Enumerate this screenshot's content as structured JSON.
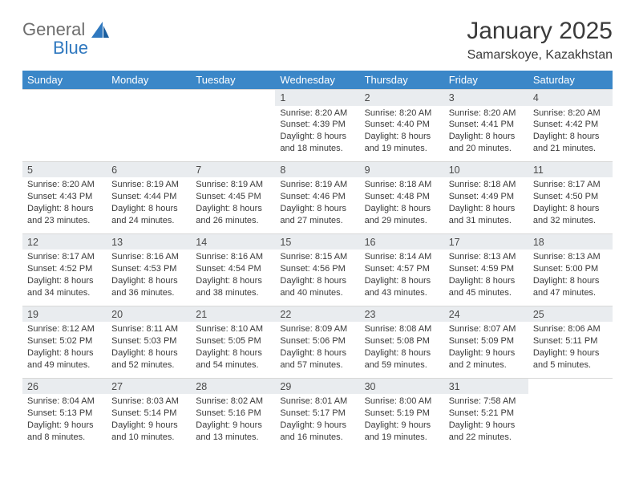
{
  "logo": {
    "word1": "General",
    "word2": "Blue"
  },
  "header": {
    "title": "January 2025",
    "location": "Samarskoye, Kazakhstan"
  },
  "colors": {
    "header_bg": "#3b87c8",
    "header_text": "#ffffff",
    "daynum_bg": "#e9ecef",
    "text": "#3a3a3a",
    "logo_grey": "#6d6d6d",
    "logo_blue": "#2f78bf"
  },
  "weekdays": [
    "Sunday",
    "Monday",
    "Tuesday",
    "Wednesday",
    "Thursday",
    "Friday",
    "Saturday"
  ],
  "weeks": [
    [
      {
        "day": "",
        "lines": [
          "",
          "",
          "",
          ""
        ]
      },
      {
        "day": "",
        "lines": [
          "",
          "",
          "",
          ""
        ]
      },
      {
        "day": "",
        "lines": [
          "",
          "",
          "",
          ""
        ]
      },
      {
        "day": "1",
        "lines": [
          "Sunrise: 8:20 AM",
          "Sunset: 4:39 PM",
          "Daylight: 8 hours",
          "and 18 minutes."
        ]
      },
      {
        "day": "2",
        "lines": [
          "Sunrise: 8:20 AM",
          "Sunset: 4:40 PM",
          "Daylight: 8 hours",
          "and 19 minutes."
        ]
      },
      {
        "day": "3",
        "lines": [
          "Sunrise: 8:20 AM",
          "Sunset: 4:41 PM",
          "Daylight: 8 hours",
          "and 20 minutes."
        ]
      },
      {
        "day": "4",
        "lines": [
          "Sunrise: 8:20 AM",
          "Sunset: 4:42 PM",
          "Daylight: 8 hours",
          "and 21 minutes."
        ]
      }
    ],
    [
      {
        "day": "5",
        "lines": [
          "Sunrise: 8:20 AM",
          "Sunset: 4:43 PM",
          "Daylight: 8 hours",
          "and 23 minutes."
        ]
      },
      {
        "day": "6",
        "lines": [
          "Sunrise: 8:19 AM",
          "Sunset: 4:44 PM",
          "Daylight: 8 hours",
          "and 24 minutes."
        ]
      },
      {
        "day": "7",
        "lines": [
          "Sunrise: 8:19 AM",
          "Sunset: 4:45 PM",
          "Daylight: 8 hours",
          "and 26 minutes."
        ]
      },
      {
        "day": "8",
        "lines": [
          "Sunrise: 8:19 AM",
          "Sunset: 4:46 PM",
          "Daylight: 8 hours",
          "and 27 minutes."
        ]
      },
      {
        "day": "9",
        "lines": [
          "Sunrise: 8:18 AM",
          "Sunset: 4:48 PM",
          "Daylight: 8 hours",
          "and 29 minutes."
        ]
      },
      {
        "day": "10",
        "lines": [
          "Sunrise: 8:18 AM",
          "Sunset: 4:49 PM",
          "Daylight: 8 hours",
          "and 31 minutes."
        ]
      },
      {
        "day": "11",
        "lines": [
          "Sunrise: 8:17 AM",
          "Sunset: 4:50 PM",
          "Daylight: 8 hours",
          "and 32 minutes."
        ]
      }
    ],
    [
      {
        "day": "12",
        "lines": [
          "Sunrise: 8:17 AM",
          "Sunset: 4:52 PM",
          "Daylight: 8 hours",
          "and 34 minutes."
        ]
      },
      {
        "day": "13",
        "lines": [
          "Sunrise: 8:16 AM",
          "Sunset: 4:53 PM",
          "Daylight: 8 hours",
          "and 36 minutes."
        ]
      },
      {
        "day": "14",
        "lines": [
          "Sunrise: 8:16 AM",
          "Sunset: 4:54 PM",
          "Daylight: 8 hours",
          "and 38 minutes."
        ]
      },
      {
        "day": "15",
        "lines": [
          "Sunrise: 8:15 AM",
          "Sunset: 4:56 PM",
          "Daylight: 8 hours",
          "and 40 minutes."
        ]
      },
      {
        "day": "16",
        "lines": [
          "Sunrise: 8:14 AM",
          "Sunset: 4:57 PM",
          "Daylight: 8 hours",
          "and 43 minutes."
        ]
      },
      {
        "day": "17",
        "lines": [
          "Sunrise: 8:13 AM",
          "Sunset: 4:59 PM",
          "Daylight: 8 hours",
          "and 45 minutes."
        ]
      },
      {
        "day": "18",
        "lines": [
          "Sunrise: 8:13 AM",
          "Sunset: 5:00 PM",
          "Daylight: 8 hours",
          "and 47 minutes."
        ]
      }
    ],
    [
      {
        "day": "19",
        "lines": [
          "Sunrise: 8:12 AM",
          "Sunset: 5:02 PM",
          "Daylight: 8 hours",
          "and 49 minutes."
        ]
      },
      {
        "day": "20",
        "lines": [
          "Sunrise: 8:11 AM",
          "Sunset: 5:03 PM",
          "Daylight: 8 hours",
          "and 52 minutes."
        ]
      },
      {
        "day": "21",
        "lines": [
          "Sunrise: 8:10 AM",
          "Sunset: 5:05 PM",
          "Daylight: 8 hours",
          "and 54 minutes."
        ]
      },
      {
        "day": "22",
        "lines": [
          "Sunrise: 8:09 AM",
          "Sunset: 5:06 PM",
          "Daylight: 8 hours",
          "and 57 minutes."
        ]
      },
      {
        "day": "23",
        "lines": [
          "Sunrise: 8:08 AM",
          "Sunset: 5:08 PM",
          "Daylight: 8 hours",
          "and 59 minutes."
        ]
      },
      {
        "day": "24",
        "lines": [
          "Sunrise: 8:07 AM",
          "Sunset: 5:09 PM",
          "Daylight: 9 hours",
          "and 2 minutes."
        ]
      },
      {
        "day": "25",
        "lines": [
          "Sunrise: 8:06 AM",
          "Sunset: 5:11 PM",
          "Daylight: 9 hours",
          "and 5 minutes."
        ]
      }
    ],
    [
      {
        "day": "26",
        "lines": [
          "Sunrise: 8:04 AM",
          "Sunset: 5:13 PM",
          "Daylight: 9 hours",
          "and 8 minutes."
        ]
      },
      {
        "day": "27",
        "lines": [
          "Sunrise: 8:03 AM",
          "Sunset: 5:14 PM",
          "Daylight: 9 hours",
          "and 10 minutes."
        ]
      },
      {
        "day": "28",
        "lines": [
          "Sunrise: 8:02 AM",
          "Sunset: 5:16 PM",
          "Daylight: 9 hours",
          "and 13 minutes."
        ]
      },
      {
        "day": "29",
        "lines": [
          "Sunrise: 8:01 AM",
          "Sunset: 5:17 PM",
          "Daylight: 9 hours",
          "and 16 minutes."
        ]
      },
      {
        "day": "30",
        "lines": [
          "Sunrise: 8:00 AM",
          "Sunset: 5:19 PM",
          "Daylight: 9 hours",
          "and 19 minutes."
        ]
      },
      {
        "day": "31",
        "lines": [
          "Sunrise: 7:58 AM",
          "Sunset: 5:21 PM",
          "Daylight: 9 hours",
          "and 22 minutes."
        ]
      },
      {
        "day": "",
        "lines": [
          "",
          "",
          "",
          ""
        ]
      }
    ]
  ]
}
